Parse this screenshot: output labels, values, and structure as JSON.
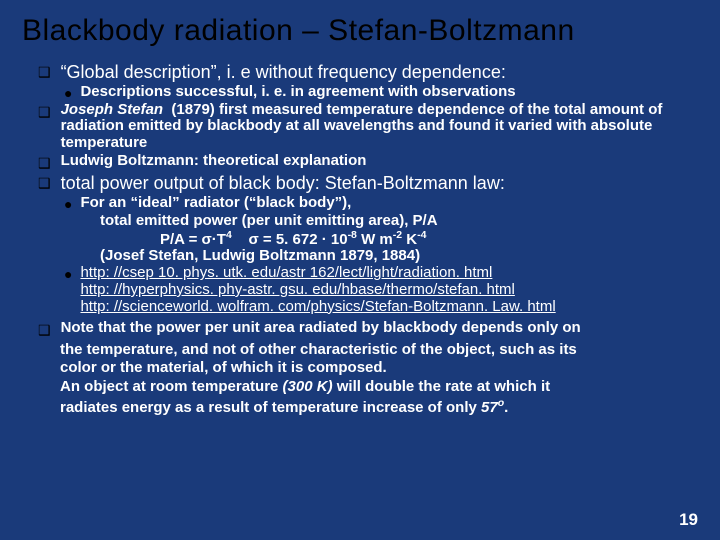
{
  "colors": {
    "background": "#1a3a7a",
    "title": "#000000",
    "bullet": "#000000",
    "text": "#ffffff"
  },
  "typography": {
    "title_fontsize": 30,
    "l1_fontsize": 18,
    "l2_fontsize": 15,
    "font_family": "Arial"
  },
  "title": "Blackbody  radiation – Stefan-Boltzmann",
  "b1": "“Global description”, i. e without frequency dependence:",
  "b1a": "Descriptions successful, i. e. in agreement with observations",
  "b2_html": "<em>Joseph Stefan</em> &nbsp;(1879) first measured  temperature dependence of the total amount of radiation emitted by blackbody at all wavelengths and found it varied with absolute temperature",
  "b3": "Ludwig Boltzmann: theoretical explanation",
  "b4": "total power output of black body: Stefan-Boltzmann law:",
  "b4a": "For an “ideal” radiator (“black body”),",
  "b4a_l2": "total emitted power (per unit emitting area), P/A",
  "b4a_l3_html": "P/A  = σ·T<sup>4</sup> &nbsp;&nbsp;&nbsp;σ =  5. 672 · 10<sup>-8</sup> W m<sup>-2</sup> K<sup>-4</sup>",
  "b4a_l4": "(Josef Stefan,  Ludwig Boltzmann 1879, 1884)",
  "link1": "http: //csep 10. phys. utk. edu/astr 162/lect/light/radiation. html",
  "link2": "http: //hyperphysics. phy-astr. gsu. edu/hbase/thermo/stefan. html",
  "link3": "http: //scienceworld. wolfram. com/physics/Stefan-Boltzmann. Law. html",
  "note1": " Note that the power per unit area radiated by blackbody depends only on",
  "note2": "the temperature, and not of other characteristic of the object, such as its",
  "note3": "color or the material, of which it is composed.",
  "note4_html": "An object at room temperature <em>(300 K)</em> will double the rate at which it",
  "note5_html": "radiates energy as a result of temperature increase of only <em>57<sup>o</sup></em>.",
  "slidenum": "19"
}
